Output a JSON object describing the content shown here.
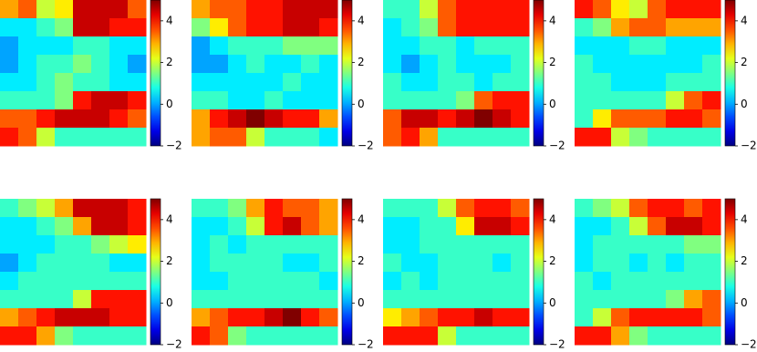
{
  "chart_data": [
    {
      "type": "heatmap",
      "colormap": "jet",
      "clim": [
        -2,
        5
      ],
      "cticks": [
        {
          "value": -2,
          "label": "−2"
        },
        0,
        2,
        4
      ],
      "values": [
        [
          3,
          3.5,
          2,
          2.5,
          4.5,
          4.5,
          4.5,
          3.5
        ],
        [
          0.5,
          0.5,
          1,
          1.5,
          4.5,
          4.5,
          4,
          4
        ],
        [
          0,
          0.5,
          0.5,
          0.5,
          1,
          1,
          0.5,
          0.5
        ],
        [
          0,
          0.5,
          1,
          1,
          1.5,
          1,
          0.5,
          0
        ],
        [
          0.5,
          0.5,
          1,
          1.5,
          1,
          1,
          0.5,
          0.5
        ],
        [
          1,
          1,
          1,
          1.5,
          4,
          4.5,
          4.5,
          4
        ],
        [
          3.5,
          3.5,
          4,
          4.5,
          4.5,
          4.5,
          4,
          3.5
        ],
        [
          4,
          3.5,
          2,
          1,
          1,
          1,
          1,
          1
        ]
      ]
    },
    {
      "type": "heatmap",
      "colormap": "jet",
      "clim": [
        -2,
        5
      ],
      "cticks": [
        {
          "value": -2,
          "label": "−2"
        },
        0,
        2,
        4
      ],
      "values": [
        [
          3,
          3.5,
          3.5,
          4,
          4,
          4.5,
          4.5,
          4.5
        ],
        [
          1.5,
          2.5,
          3.5,
          4,
          4,
          4.5,
          4.5,
          4
        ],
        [
          0,
          0.5,
          1,
          1,
          1,
          1.5,
          1.5,
          1.5
        ],
        [
          0,
          0,
          0.5,
          1,
          0.5,
          0.5,
          1,
          0.5
        ],
        [
          0.5,
          0.5,
          0.5,
          0.5,
          0.5,
          1,
          0.5,
          0.5
        ],
        [
          1,
          1,
          0.5,
          0.5,
          1,
          0.5,
          0.5,
          0.5
        ],
        [
          3,
          4,
          4.5,
          5,
          4.5,
          4,
          4,
          3
        ],
        [
          3,
          3.5,
          3.5,
          2,
          1,
          1,
          1,
          0.5
        ]
      ]
    },
    {
      "type": "heatmap",
      "colormap": "jet",
      "clim": [
        -2,
        5
      ],
      "cticks": [
        {
          "value": -2,
          "label": "−2"
        },
        0,
        2,
        4
      ],
      "values": [
        [
          1,
          1,
          2,
          3.5,
          4,
          4,
          4,
          4
        ],
        [
          0.5,
          1,
          1.5,
          3.5,
          4,
          4,
          4,
          4
        ],
        [
          0.5,
          0.5,
          1,
          1,
          0.5,
          1,
          1,
          1
        ],
        [
          0.5,
          0,
          0.5,
          1,
          0.5,
          0.5,
          0.5,
          1
        ],
        [
          1,
          0.5,
          0.5,
          1,
          1,
          0.5,
          1,
          1
        ],
        [
          1,
          1,
          1,
          1,
          1.5,
          3.5,
          4,
          4
        ],
        [
          3.5,
          4.5,
          4.5,
          4,
          4.5,
          5,
          4.5,
          4
        ],
        [
          3.5,
          4,
          3,
          1,
          1,
          1,
          1,
          1
        ]
      ]
    },
    {
      "type": "heatmap",
      "colormap": "jet",
      "clim": [
        -2,
        5
      ],
      "cticks": [
        {
          "value": -2,
          "label": "−2"
        },
        0,
        2,
        4
      ],
      "values": [
        [
          4,
          3.5,
          2.5,
          2,
          3.5,
          4,
          4,
          4
        ],
        [
          1,
          1.5,
          3,
          3.5,
          3.5,
          3,
          3,
          3
        ],
        [
          0.5,
          0.5,
          0.5,
          1,
          1,
          0.5,
          0.5,
          0.5
        ],
        [
          1,
          0.5,
          0.5,
          0.5,
          0.5,
          0.5,
          0.5,
          1
        ],
        [
          1,
          1,
          0.5,
          0.5,
          0.5,
          1,
          1,
          1
        ],
        [
          1,
          1,
          1,
          1,
          1,
          2,
          3.5,
          4
        ],
        [
          1,
          2.5,
          3.5,
          3.5,
          3.5,
          4,
          4,
          3.5
        ],
        [
          4,
          4,
          2,
          1.5,
          1,
          1,
          1,
          1
        ]
      ]
    },
    {
      "type": "heatmap",
      "colormap": "jet",
      "clim": [
        -2,
        5
      ],
      "cticks": [
        {
          "value": -2,
          "label": "−2"
        },
        0,
        2,
        4
      ],
      "values": [
        [
          1,
          1.5,
          2,
          3,
          4.5,
          4.5,
          4.5,
          4
        ],
        [
          0.5,
          0.5,
          1,
          1.5,
          3,
          4.5,
          4.5,
          4
        ],
        [
          0.5,
          0.5,
          0.5,
          1,
          1,
          1.5,
          2,
          2.5
        ],
        [
          0,
          0.5,
          1,
          1,
          1,
          1,
          0.5,
          0.5
        ],
        [
          0.5,
          1,
          1,
          1,
          1,
          1,
          1,
          1
        ],
        [
          1,
          1,
          1,
          1,
          2,
          4,
          4,
          4
        ],
        [
          3,
          3.5,
          4,
          4.5,
          4.5,
          4.5,
          4,
          4
        ],
        [
          4,
          4,
          3,
          1.5,
          1,
          1,
          1,
          1
        ]
      ]
    },
    {
      "type": "heatmap",
      "colormap": "jet",
      "clim": [
        -2,
        5
      ],
      "cticks": [
        {
          "value": -2,
          "label": "−2"
        },
        0,
        2,
        4
      ],
      "values": [
        [
          1,
          1,
          1.5,
          3,
          4,
          3.5,
          3.5,
          3
        ],
        [
          0.5,
          0.5,
          1,
          2,
          4,
          4.5,
          3.5,
          3
        ],
        [
          0.5,
          1,
          0.5,
          1,
          1,
          1,
          1,
          1
        ],
        [
          0.5,
          1,
          1,
          1,
          1,
          0.5,
          0.5,
          1
        ],
        [
          0.5,
          0.5,
          1,
          1,
          1,
          1,
          1,
          0.5
        ],
        [
          1,
          1,
          1,
          1,
          1,
          1,
          1,
          1
        ],
        [
          3,
          3.5,
          4,
          4,
          4.5,
          5,
          4,
          3.5
        ],
        [
          4,
          3.5,
          1.5,
          1,
          1,
          1,
          1,
          1
        ]
      ]
    },
    {
      "type": "heatmap",
      "colormap": "jet",
      "clim": [
        -2,
        5
      ],
      "cticks": [
        {
          "value": -2,
          "label": "−2"
        },
        0,
        2,
        4
      ],
      "values": [
        [
          1,
          1,
          1,
          2,
          3.5,
          4,
          4,
          3.5
        ],
        [
          0.5,
          0.5,
          1,
          1,
          2.5,
          4.5,
          4.5,
          4
        ],
        [
          0.5,
          0.5,
          1,
          1,
          1,
          1,
          1,
          1
        ],
        [
          1,
          0.5,
          0.5,
          1,
          1,
          1,
          0.5,
          1
        ],
        [
          0.5,
          1,
          0.5,
          1,
          1,
          1,
          1,
          1
        ],
        [
          1,
          1,
          1,
          1,
          1,
          1,
          1,
          1
        ],
        [
          2.5,
          3,
          3.5,
          4,
          4,
          4.5,
          4,
          4
        ],
        [
          4,
          4,
          4,
          2,
          1,
          1,
          1,
          1
        ]
      ]
    },
    {
      "type": "heatmap",
      "colormap": "jet",
      "clim": [
        -2,
        5
      ],
      "cticks": [
        {
          "value": -2,
          "label": "−2"
        },
        0,
        2,
        4
      ],
      "values": [
        [
          1,
          1.5,
          2,
          3.5,
          4,
          4,
          3.5,
          4
        ],
        [
          0.5,
          0.5,
          1,
          2,
          3.5,
          4.5,
          4.5,
          4
        ],
        [
          0.5,
          1,
          1,
          1,
          1,
          1,
          1.5,
          1.5
        ],
        [
          0.5,
          1,
          1,
          0.5,
          1,
          0.5,
          1,
          1
        ],
        [
          1,
          0.5,
          1,
          1,
          1,
          1,
          1,
          1
        ],
        [
          1,
          1,
          1,
          1,
          1,
          1.5,
          3,
          3.5
        ],
        [
          1,
          2,
          3.5,
          4,
          4,
          4,
          4,
          3.5
        ],
        [
          4,
          4,
          3,
          1.5,
          1,
          1,
          1,
          1
        ]
      ]
    }
  ]
}
